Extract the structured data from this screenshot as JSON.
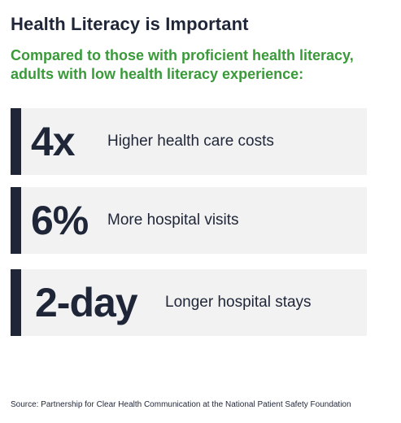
{
  "title": "Health Literacy is Important",
  "subtitle_line1": "Compared to those with proficient health literacy,",
  "subtitle_line2": "adults with low health literacy experience:",
  "stats": [
    {
      "value": "4x",
      "description": "Higher health care costs"
    },
    {
      "value": "6%",
      "description": "More hospital visits"
    },
    {
      "value": "2-day",
      "description": "Longer hospital stays"
    }
  ],
  "source": "Source: Partnership for Clear Health Communication at the National Patient Safety Foundation",
  "colors": {
    "navy": "#1f2638",
    "green": "#3a9a3a",
    "card_background": "#f2f2f2"
  }
}
